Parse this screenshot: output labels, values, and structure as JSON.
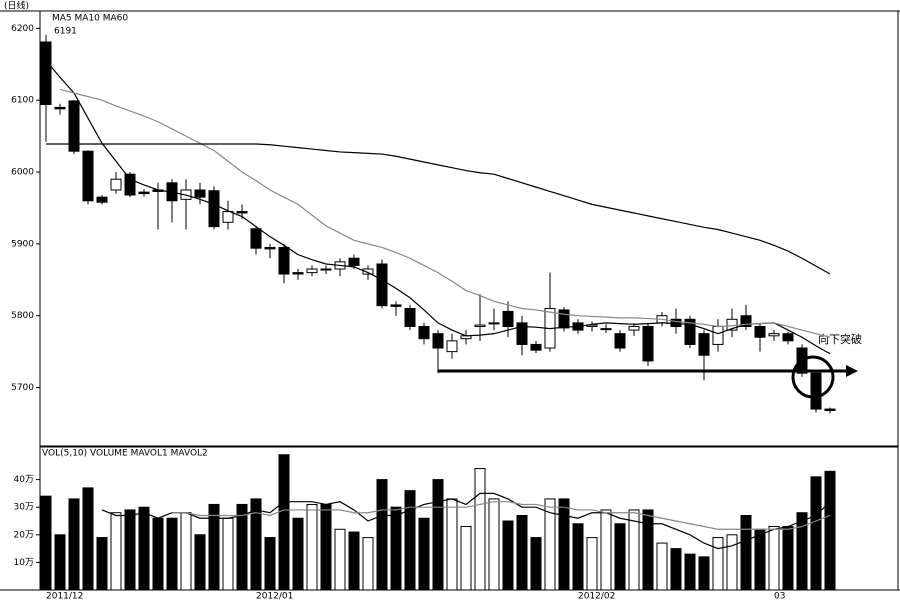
{
  "chart_data": {
    "type": "candlestick",
    "header": "(日线)",
    "ma_legend": "MA5 MA10 MA60",
    "volume_legend": "VOL(5,10) VOLUME MAVOL1 MAVOL2",
    "annotations": [
      "6191",
      "向下突破"
    ],
    "categories": [
      "2011/12",
      null,
      null,
      null,
      null,
      null,
      null,
      null,
      null,
      null,
      null,
      null,
      null,
      null,
      null,
      "2012/01",
      null,
      null,
      null,
      null,
      null,
      null,
      null,
      null,
      null,
      null,
      null,
      null,
      null,
      null,
      null,
      null,
      null,
      null,
      null,
      null,
      null,
      null,
      "2012/02",
      null,
      null,
      null,
      null,
      null,
      null,
      null,
      null,
      null,
      null,
      null,
      null,
      null,
      "03",
      null,
      null,
      null,
      null
    ],
    "open": [
      6181,
      6090,
      6099,
      6029,
      5965,
      5975,
      5997,
      5972,
      5975,
      5985,
      5962,
      5975,
      5974,
      5930,
      5945,
      5921,
      5895,
      5895,
      5860,
      5860,
      5865,
      5865,
      5880,
      5858,
      5872,
      5815,
      5810,
      5785,
      5775,
      5750,
      5768,
      5785,
      5790,
      5806,
      5790,
      5760,
      5755,
      5808,
      5790,
      5785,
      5782,
      5775,
      5780,
      5785,
      5790,
      5795,
      5795,
      5775,
      5760,
      5780,
      5800,
      5785,
      5772,
      5775,
      5755,
      5720,
      5670
    ],
    "high": [
      6191,
      6095,
      6100,
      6030,
      5968,
      6000,
      6000,
      5976,
      5985,
      5990,
      5990,
      5985,
      5980,
      5960,
      5955,
      5925,
      5900,
      5900,
      5865,
      5870,
      5870,
      5880,
      5885,
      5870,
      5878,
      5820,
      5815,
      5790,
      5780,
      5775,
      5780,
      5830,
      5810,
      5820,
      5800,
      5765,
      5860,
      5812,
      5795,
      5792,
      5788,
      5780,
      5790,
      5790,
      5805,
      5810,
      5800,
      5780,
      5795,
      5810,
      5815,
      5790,
      5780,
      5778,
      5760,
      5722,
      5672
    ],
    "low": [
      6042,
      6080,
      6025,
      5955,
      5955,
      5970,
      5965,
      5966,
      5920,
      5930,
      5920,
      5955,
      5920,
      5920,
      5935,
      5885,
      5880,
      5845,
      5850,
      5855,
      5858,
      5855,
      5865,
      5850,
      5810,
      5800,
      5780,
      5760,
      5720,
      5740,
      5760,
      5765,
      5780,
      5770,
      5745,
      5748,
      5750,
      5778,
      5775,
      5778,
      5776,
      5750,
      5772,
      5730,
      5785,
      5775,
      5755,
      5710,
      5750,
      5770,
      5780,
      5750,
      5765,
      5760,
      5715,
      5665,
      5664
    ],
    "close": [
      6094,
      6088,
      6029,
      5960,
      5958,
      5990,
      5968,
      5970,
      5973,
      5960,
      5975,
      5965,
      5924,
      5945,
      5943,
      5894,
      5893,
      5858,
      5858,
      5865,
      5864,
      5875,
      5870,
      5865,
      5814,
      5813,
      5785,
      5768,
      5755,
      5765,
      5772,
      5787,
      5790,
      5785,
      5760,
      5752,
      5810,
      5783,
      5780,
      5787,
      5782,
      5755,
      5785,
      5737,
      5800,
      5785,
      5760,
      5745,
      5785,
      5795,
      5785,
      5770,
      5775,
      5765,
      5720,
      5670,
      5668
    ],
    "ma_lines": [
      {
        "name": "MA5",
        "color": "#000000",
        "values": [
          6155,
          6132,
          6110,
          6075,
          6040,
          6015,
          5990,
          5982,
          5975,
          5972,
          5968,
          5962,
          5955,
          5946,
          5938,
          5924,
          5910,
          5898,
          5885,
          5878,
          5872,
          5870,
          5868,
          5860,
          5850,
          5838,
          5825,
          5808,
          5790,
          5780,
          5772,
          5773,
          5775,
          5780,
          5785,
          5784,
          5782,
          5784,
          5785,
          5788,
          5790,
          5789,
          5788,
          5789,
          5790,
          5789,
          5788,
          5782,
          5775,
          5782,
          5788,
          5789,
          5790,
          5780,
          5770,
          5758,
          5747
        ]
      },
      {
        "name": "MA10",
        "color": "#888888",
        "values": [
          null,
          6115,
          6110,
          6105,
          6100,
          6092,
          6085,
          6078,
          6070,
          6060,
          6050,
          6040,
          6030,
          6015,
          6000,
          5988,
          5975,
          5965,
          5955,
          5940,
          5925,
          5915,
          5905,
          5900,
          5895,
          5888,
          5880,
          5870,
          5860,
          5848,
          5835,
          5828,
          5820,
          5815,
          5810,
          5808,
          5805,
          5802,
          5800,
          5799,
          5798,
          5797,
          5797,
          5796,
          5795,
          5792,
          5790,
          5788,
          5785,
          5786,
          5788,
          5789,
          5790,
          5785,
          5780,
          5775,
          5770
        ]
      },
      {
        "name": "MA60",
        "color": "#000000",
        "values": [
          6039,
          6039,
          6039,
          6039,
          6039,
          6039,
          6039,
          6039,
          6039,
          6039,
          6039,
          6039,
          6039,
          6039,
          6039,
          6039,
          6038,
          6036,
          6034,
          6032,
          6030,
          6028,
          6027,
          6026,
          6025,
          6022,
          6018,
          6014,
          6010,
          6006,
          6002,
          5999,
          5997,
          5991,
          5985,
          5979,
          5973,
          5967,
          5961,
          5955,
          5951,
          5947,
          5943,
          5939,
          5935,
          5931,
          5927,
          5923,
          5920,
          5915,
          5910,
          5905,
          5898,
          5890,
          5880,
          5869,
          5858
        ]
      }
    ],
    "volume": [
      34,
      20,
      33,
      37,
      19,
      28,
      29,
      30,
      26,
      26,
      28,
      20,
      31,
      26,
      31,
      33,
      19,
      49,
      26,
      31,
      31,
      22,
      21,
      19,
      40,
      30,
      36,
      26,
      40,
      33,
      23,
      44,
      33,
      25,
      27,
      19,
      33,
      33,
      24,
      19,
      29,
      24,
      29,
      29,
      17,
      15,
      13,
      12,
      19,
      20,
      27,
      22,
      23,
      23,
      28,
      41,
      43
    ],
    "volume_ma": [
      {
        "name": "MAVOL1",
        "color": "#000000",
        "values": [
          null,
          null,
          null,
          null,
          29,
          27,
          27,
          28,
          26,
          28,
          28,
          26,
          26,
          26,
          27,
          29,
          28,
          32,
          32,
          32,
          31,
          32,
          29,
          25,
          27,
          27,
          29,
          31,
          32,
          33,
          31,
          35,
          35,
          33,
          30,
          30,
          28,
          27,
          26,
          28,
          28,
          26,
          25,
          24,
          24,
          22,
          20,
          17,
          15,
          16,
          18,
          20,
          22,
          23,
          25,
          27,
          32
        ]
      },
      {
        "name": "MAVOL2",
        "color": "#888888",
        "values": [
          null,
          null,
          null,
          null,
          null,
          null,
          null,
          null,
          null,
          28,
          28,
          27,
          27,
          27,
          27,
          28,
          27,
          29,
          29,
          29,
          29,
          29,
          28,
          28,
          29,
          29,
          30,
          30,
          30,
          30,
          30,
          31,
          32,
          32,
          31,
          31,
          30,
          30,
          29,
          29,
          28,
          28,
          28,
          27,
          26,
          25,
          24,
          23,
          22,
          22,
          22,
          22,
          22,
          22,
          23,
          25,
          27
        ]
      }
    ],
    "up_color": "#ffffff",
    "down_color": "#000000",
    "ylim": [
      5620,
      6220
    ],
    "yticks": [
      5700,
      5800,
      5900,
      6000,
      6100,
      6200
    ],
    "volume_ylim": [
      0,
      50
    ],
    "volume_ticks": [
      {
        "value": 10,
        "label": "10万"
      },
      {
        "value": 20,
        "label": "20万"
      },
      {
        "value": 30,
        "label": "30万"
      },
      {
        "value": 40,
        "label": "40万"
      }
    ]
  }
}
